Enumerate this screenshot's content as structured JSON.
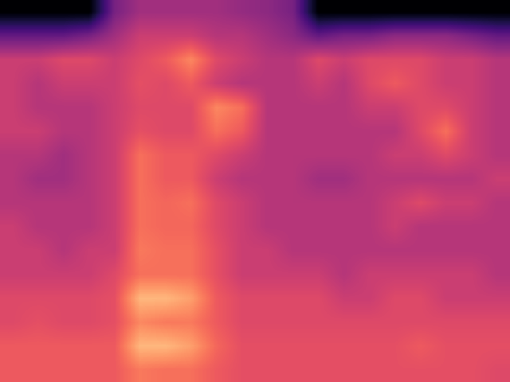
{
  "chart_data": {
    "type": "heatmap",
    "color": "magma",
    "tick_labels": false,
    "zlim": [
      0,
      1
    ],
    "cells": [
      [
        0,
        0,
        0,
        0,
        0.35,
        0.45,
        0.45,
        0.45,
        0.45,
        0.42,
        0.4,
        0.35,
        0,
        0,
        0,
        0,
        0,
        0,
        0,
        0
      ],
      [
        0.3,
        0.3,
        0.3,
        0.35,
        0.45,
        0.55,
        0.55,
        0.55,
        0.5,
        0.5,
        0.45,
        0.4,
        0.3,
        0.35,
        0.35,
        0.4,
        0.4,
        0.4,
        0.35,
        0.3
      ],
      [
        0.55,
        0.55,
        0.6,
        0.6,
        0.55,
        0.6,
        0.65,
        0.75,
        0.6,
        0.55,
        0.5,
        0.5,
        0.6,
        0.55,
        0.6,
        0.6,
        0.6,
        0.55,
        0.55,
        0.5
      ],
      [
        0.55,
        0.5,
        0.55,
        0.55,
        0.55,
        0.62,
        0.6,
        0.65,
        0.55,
        0.5,
        0.5,
        0.5,
        0.55,
        0.5,
        0.6,
        0.65,
        0.6,
        0.55,
        0.55,
        0.5
      ],
      [
        0.55,
        0.5,
        0.5,
        0.5,
        0.55,
        0.6,
        0.6,
        0.6,
        0.75,
        0.7,
        0.5,
        0.5,
        0.5,
        0.5,
        0.55,
        0.55,
        0.6,
        0.6,
        0.55,
        0.5
      ],
      [
        0.55,
        0.55,
        0.5,
        0.5,
        0.55,
        0.62,
        0.6,
        0.6,
        0.7,
        0.65,
        0.5,
        0.5,
        0.5,
        0.5,
        0.5,
        0.5,
        0.6,
        0.7,
        0.55,
        0.5
      ],
      [
        0.5,
        0.5,
        0.45,
        0.5,
        0.55,
        0.7,
        0.65,
        0.65,
        0.6,
        0.55,
        0.5,
        0.5,
        0.5,
        0.5,
        0.5,
        0.55,
        0.55,
        0.6,
        0.55,
        0.5
      ],
      [
        0.5,
        0.45,
        0.45,
        0.5,
        0.55,
        0.7,
        0.65,
        0.65,
        0.55,
        0.5,
        0.5,
        0.5,
        0.45,
        0.45,
        0.5,
        0.5,
        0.5,
        0.5,
        0.5,
        0.55
      ],
      [
        0.5,
        0.5,
        0.5,
        0.5,
        0.55,
        0.7,
        0.68,
        0.7,
        0.6,
        0.55,
        0.5,
        0.5,
        0.5,
        0.5,
        0.5,
        0.55,
        0.6,
        0.55,
        0.55,
        0.5
      ],
      [
        0.55,
        0.5,
        0.5,
        0.5,
        0.55,
        0.7,
        0.68,
        0.68,
        0.6,
        0.55,
        0.5,
        0.5,
        0.5,
        0.5,
        0.5,
        0.55,
        0.5,
        0.5,
        0.5,
        0.5
      ],
      [
        0.55,
        0.55,
        0.5,
        0.55,
        0.55,
        0.72,
        0.7,
        0.7,
        0.62,
        0.55,
        0.55,
        0.5,
        0.5,
        0.5,
        0.5,
        0.5,
        0.5,
        0.5,
        0.5,
        0.5
      ],
      [
        0.55,
        0.55,
        0.55,
        0.55,
        0.6,
        0.7,
        0.7,
        0.7,
        0.62,
        0.55,
        0.55,
        0.55,
        0.55,
        0.5,
        0.55,
        0.55,
        0.55,
        0.55,
        0.55,
        0.5
      ],
      [
        0.6,
        0.6,
        0.6,
        0.6,
        0.62,
        0.85,
        0.85,
        0.8,
        0.65,
        0.6,
        0.6,
        0.6,
        0.6,
        0.55,
        0.55,
        0.6,
        0.6,
        0.55,
        0.55,
        0.55
      ],
      [
        0.6,
        0.62,
        0.6,
        0.6,
        0.62,
        0.75,
        0.72,
        0.72,
        0.65,
        0.6,
        0.6,
        0.6,
        0.6,
        0.6,
        0.6,
        0.6,
        0.6,
        0.6,
        0.6,
        0.6
      ],
      [
        0.65,
        0.65,
        0.65,
        0.65,
        0.65,
        0.85,
        0.85,
        0.8,
        0.68,
        0.62,
        0.62,
        0.62,
        0.62,
        0.62,
        0.62,
        0.62,
        0.65,
        0.62,
        0.62,
        0.62
      ],
      [
        0.65,
        0.65,
        0.65,
        0.65,
        0.65,
        0.72,
        0.7,
        0.7,
        0.65,
        0.62,
        0.62,
        0.62,
        0.62,
        0.62,
        0.62,
        0.62,
        0.62,
        0.62,
        0.62,
        0.6
      ]
    ]
  }
}
